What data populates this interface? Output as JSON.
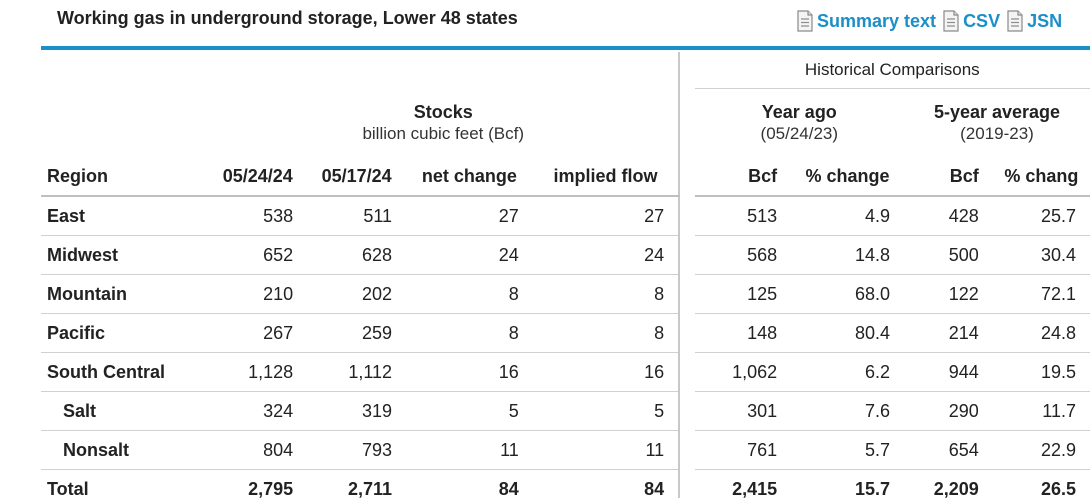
{
  "header": {
    "title": "Working gas in underground storage, Lower 48 states",
    "downloads": [
      {
        "label": "Summary text",
        "icon": "document-icon"
      },
      {
        "label": "CSV",
        "icon": "document-icon"
      },
      {
        "label": "JSN",
        "icon": "document-icon"
      }
    ]
  },
  "table": {
    "historical_label": "Historical Comparisons",
    "stocks": {
      "title": "Stocks",
      "subtitle": "billion cubic feet (Bcf)"
    },
    "year_ago": {
      "title": "Year ago",
      "subtitle": "(05/24/23)"
    },
    "five_year": {
      "title": "5-year average",
      "subtitle": "(2019-23)"
    },
    "columns": {
      "region": "Region",
      "cur": "05/24/24",
      "prev": "05/17/24",
      "net": "net change",
      "flow": "implied flow",
      "ya_bcf": "Bcf",
      "ya_pct": "% change",
      "fy_bcf": "Bcf",
      "fy_pct": "% chang"
    },
    "rows": [
      {
        "region": "East",
        "cur": "538",
        "prev": "511",
        "net": "27",
        "flow": "27",
        "ya_bcf": "513",
        "ya_pct": "4.9",
        "fy_bcf": "428",
        "fy_pct": "25.7"
      },
      {
        "region": "Midwest",
        "cur": "652",
        "prev": "628",
        "net": "24",
        "flow": "24",
        "ya_bcf": "568",
        "ya_pct": "14.8",
        "fy_bcf": "500",
        "fy_pct": "30.4"
      },
      {
        "region": "Mountain",
        "cur": "210",
        "prev": "202",
        "net": "8",
        "flow": "8",
        "ya_bcf": "125",
        "ya_pct": "68.0",
        "fy_bcf": "122",
        "fy_pct": "72.1"
      },
      {
        "region": "Pacific",
        "cur": "267",
        "prev": "259",
        "net": "8",
        "flow": "8",
        "ya_bcf": "148",
        "ya_pct": "80.4",
        "fy_bcf": "214",
        "fy_pct": "24.8"
      },
      {
        "region": "South Central",
        "cur": "1,128",
        "prev": "1,112",
        "net": "16",
        "flow": "16",
        "ya_bcf": "1,062",
        "ya_pct": "6.2",
        "fy_bcf": "944",
        "fy_pct": "19.5"
      },
      {
        "region": "Salt",
        "cur": "324",
        "prev": "319",
        "net": "5",
        "flow": "5",
        "ya_bcf": "301",
        "ya_pct": "7.6",
        "fy_bcf": "290",
        "fy_pct": "11.7"
      },
      {
        "region": "Nonsalt",
        "cur": "804",
        "prev": "793",
        "net": "11",
        "flow": "11",
        "ya_bcf": "761",
        "ya_pct": "5.7",
        "fy_bcf": "654",
        "fy_pct": "22.9"
      },
      {
        "region": "Total",
        "cur": "2,795",
        "prev": "2,711",
        "net": "84",
        "flow": "84",
        "ya_bcf": "2,415",
        "ya_pct": "15.7",
        "fy_bcf": "2,209",
        "fy_pct": "26.5"
      }
    ]
  },
  "colors": {
    "accent": "#1a8fc9",
    "text": "#222222",
    "rule": "#d0d0d0"
  }
}
